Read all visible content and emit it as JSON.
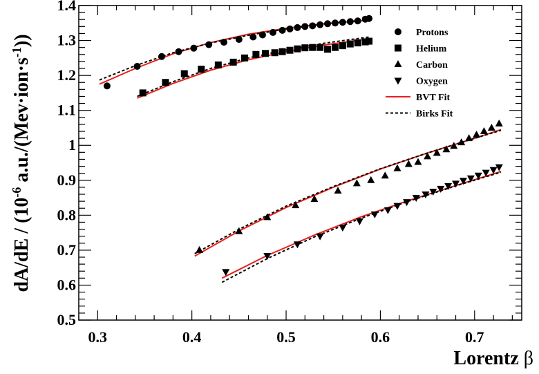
{
  "chart_data": {
    "type": "scatter",
    "xlabel": "Lorentz β",
    "ylabel": "dA/dE / (10⁻⁶ a.u./(Mev·ion·s⁻¹))",
    "xlim": [
      0.28,
      0.75
    ],
    "ylim": [
      0.5,
      1.4
    ],
    "x_ticks": [
      0.3,
      0.4,
      0.5,
      0.6,
      0.7
    ],
    "y_ticks": [
      0.5,
      0.6,
      0.7,
      0.8,
      0.9,
      1.0,
      1.1,
      1.2,
      1.3,
      1.4
    ],
    "x_tick_labels": [
      "0.3",
      "0.4",
      "0.5",
      "0.6",
      "0.7"
    ],
    "y_tick_labels": [
      "0.5",
      "0.6",
      "0.7",
      "0.8",
      "0.9",
      "1",
      "1.1",
      "1.2",
      "1.3",
      "1.4"
    ],
    "grid": false,
    "legend_position": "top-right",
    "series": [
      {
        "name": "Protons",
        "marker": "circle",
        "color": "#000000",
        "x": [
          0.31,
          0.342,
          0.368,
          0.386,
          0.402,
          0.418,
          0.434,
          0.45,
          0.465,
          0.475,
          0.486,
          0.496,
          0.504,
          0.512,
          0.52,
          0.528,
          0.536,
          0.544,
          0.552,
          0.56,
          0.568,
          0.576,
          0.584,
          0.588
        ],
        "y": [
          1.17,
          1.226,
          1.254,
          1.268,
          1.278,
          1.288,
          1.295,
          1.303,
          1.31,
          1.316,
          1.323,
          1.329,
          1.333,
          1.337,
          1.34,
          1.342,
          1.345,
          1.348,
          1.35,
          1.352,
          1.354,
          1.356,
          1.361,
          1.363
        ]
      },
      {
        "name": "Helium",
        "marker": "square",
        "color": "#000000",
        "x": [
          0.348,
          0.372,
          0.392,
          0.41,
          0.428,
          0.444,
          0.456,
          0.468,
          0.478,
          0.488,
          0.496,
          0.504,
          0.512,
          0.52,
          0.528,
          0.536,
          0.544,
          0.552,
          0.56,
          0.568,
          0.576,
          0.584,
          0.588
        ],
        "y": [
          1.15,
          1.18,
          1.205,
          1.218,
          1.23,
          1.238,
          1.25,
          1.26,
          1.263,
          1.265,
          1.268,
          1.272,
          1.276,
          1.279,
          1.28,
          1.28,
          1.275,
          1.28,
          1.285,
          1.29,
          1.293,
          1.296,
          1.298
        ]
      },
      {
        "name": "Carbon",
        "marker": "triangle-up",
        "color": "#000000",
        "x": [
          0.408,
          0.45,
          0.48,
          0.51,
          0.53,
          0.555,
          0.575,
          0.59,
          0.605,
          0.618,
          0.63,
          0.64,
          0.65,
          0.66,
          0.67,
          0.678,
          0.686,
          0.694,
          0.702,
          0.71,
          0.718,
          0.726
        ],
        "y": [
          0.7,
          0.754,
          0.794,
          0.828,
          0.846,
          0.87,
          0.891,
          0.9,
          0.913,
          0.934,
          0.946,
          0.952,
          0.968,
          0.978,
          0.988,
          0.998,
          1.008,
          1.02,
          1.03,
          1.04,
          1.05,
          1.062
        ]
      },
      {
        "name": "Oxygen",
        "marker": "triangle-down",
        "color": "#000000",
        "x": [
          0.436,
          0.48,
          0.512,
          0.536,
          0.56,
          0.578,
          0.594,
          0.608,
          0.618,
          0.628,
          0.638,
          0.648,
          0.656,
          0.664,
          0.672,
          0.68,
          0.688,
          0.696,
          0.704,
          0.712,
          0.72,
          0.726
        ],
        "y": [
          0.638,
          0.684,
          0.717,
          0.74,
          0.765,
          0.783,
          0.803,
          0.815,
          0.827,
          0.838,
          0.85,
          0.86,
          0.868,
          0.876,
          0.884,
          0.891,
          0.899,
          0.906,
          0.914,
          0.922,
          0.93,
          0.938
        ]
      }
    ],
    "fits": [
      {
        "name": "BVT Fit",
        "style": "solid",
        "color": "#e8211c",
        "curves": [
          {
            "x": [
              0.302,
              0.34,
              0.38,
              0.42,
              0.46,
              0.5,
              0.54,
              0.588
            ],
            "y": [
              1.175,
              1.22,
              1.262,
              1.294,
              1.318,
              1.335,
              1.348,
              1.358
            ]
          },
          {
            "x": [
              0.342,
              0.38,
              0.42,
              0.46,
              0.5,
              0.54,
              0.588
            ],
            "y": [
              1.135,
              1.177,
              1.215,
              1.245,
              1.268,
              1.287,
              1.305
            ]
          },
          {
            "x": [
              0.403,
              0.45,
              0.5,
              0.55,
              0.6,
              0.65,
              0.7,
              0.728
            ],
            "y": [
              0.683,
              0.755,
              0.822,
              0.88,
              0.932,
              0.978,
              1.02,
              1.045
            ]
          },
          {
            "x": [
              0.432,
              0.48,
              0.53,
              0.58,
              0.63,
              0.68,
              0.728
            ],
            "y": [
              0.62,
              0.685,
              0.743,
              0.796,
              0.842,
              0.885,
              0.925
            ]
          }
        ]
      },
      {
        "name": "Birks Fit",
        "style": "dashed",
        "color": "#000000",
        "curves": [
          {
            "x": [
              0.302,
              0.34,
              0.38,
              0.42,
              0.46,
              0.5,
              0.54,
              0.588
            ],
            "y": [
              1.187,
              1.228,
              1.265,
              1.293,
              1.315,
              1.333,
              1.347,
              1.36
            ]
          },
          {
            "x": [
              0.342,
              0.38,
              0.42,
              0.46,
              0.5,
              0.54,
              0.588
            ],
            "y": [
              1.14,
              1.182,
              1.22,
              1.25,
              1.273,
              1.292,
              1.31
            ]
          },
          {
            "x": [
              0.403,
              0.45,
              0.5,
              0.55,
              0.6,
              0.65,
              0.7,
              0.728
            ],
            "y": [
              0.69,
              0.76,
              0.826,
              0.882,
              0.933,
              0.978,
              1.02,
              1.043
            ]
          },
          {
            "x": [
              0.432,
              0.48,
              0.53,
              0.58,
              0.63,
              0.68,
              0.728
            ],
            "y": [
              0.608,
              0.676,
              0.738,
              0.792,
              0.84,
              0.884,
              0.923
            ]
          }
        ]
      }
    ]
  }
}
